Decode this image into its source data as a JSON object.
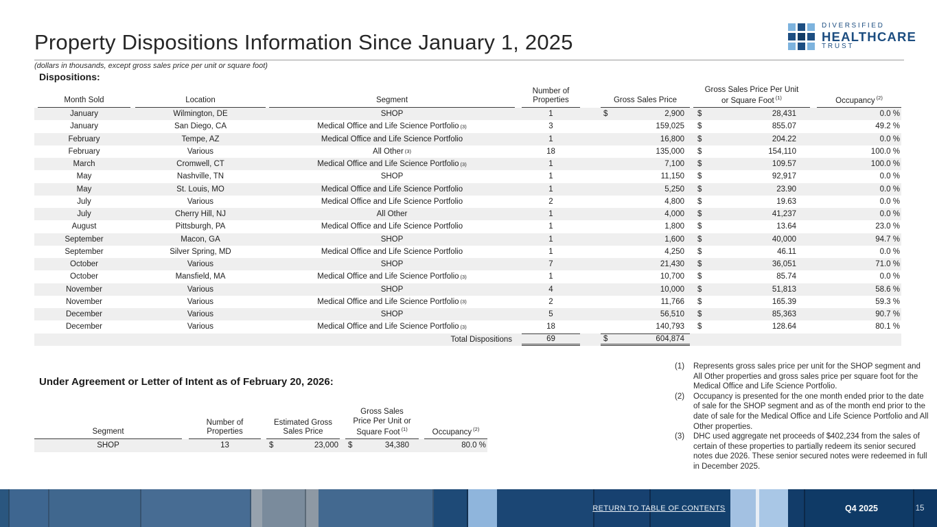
{
  "slide": {
    "title": "Property Dispositions Information Since January 1, 2025",
    "subtitle": "(dollars in thousands, except gross sales price per unit or square foot)"
  },
  "logo": {
    "line1": "DIVERSIFIED",
    "line2": "HEALTHCARE",
    "line3": "TRUST",
    "navy": "#1d4e82",
    "light_blue": "#7db3de"
  },
  "dispositions": {
    "heading": "Dispositions:",
    "headers": {
      "month": "Month Sold",
      "location": "Location",
      "segment": "Segment",
      "properties": "Number of\nProperties",
      "gross_sales_price": "Gross Sales Price",
      "price_per_unit": "Gross Sales Price Per Unit\nor Square Foot",
      "price_per_unit_sup": "(1)",
      "occupancy": "Occupancy",
      "occupancy_sup": "(2)"
    },
    "rows": [
      [
        "January",
        "Wilmington, DE",
        "SHOP",
        "",
        "1",
        "$",
        "2,900",
        "$",
        "28,431",
        "0.0 %"
      ],
      [
        "January",
        "San Diego, CA",
        "Medical Office and Life Science Portfolio",
        "(3)",
        "3",
        "",
        "159,025",
        "$",
        "855.07",
        "49.2 %"
      ],
      [
        "February",
        "Tempe, AZ",
        "Medical Office and Life Science Portfolio",
        "",
        "1",
        "",
        "16,800",
        "$",
        "204.22",
        "0.0 %"
      ],
      [
        "February",
        "Various",
        "All Other",
        "(3)",
        "18",
        "",
        "135,000",
        "$",
        "154,110",
        "100.0 %"
      ],
      [
        "March",
        "Cromwell, CT",
        "Medical Office and Life Science Portfolio",
        "(3)",
        "1",
        "",
        "7,100",
        "$",
        "109.57",
        "100.0 %"
      ],
      [
        "May",
        "Nashville, TN",
        "SHOP",
        "",
        "1",
        "",
        "11,150",
        "$",
        "92,917",
        "0.0 %"
      ],
      [
        "May",
        "St. Louis, MO",
        "Medical Office and Life Science Portfolio",
        "",
        "1",
        "",
        "5,250",
        "$",
        "23.90",
        "0.0 %"
      ],
      [
        "July",
        "Various",
        "Medical Office and Life Science Portfolio",
        "",
        "2",
        "",
        "4,800",
        "$",
        "19.63",
        "0.0 %"
      ],
      [
        "July",
        "Cherry Hill, NJ",
        "All Other",
        "",
        "1",
        "",
        "4,000",
        "$",
        "41,237",
        "0.0 %"
      ],
      [
        "August",
        "Pittsburgh, PA",
        "Medical Office and Life Science Portfolio",
        "",
        "1",
        "",
        "1,800",
        "$",
        "13.64",
        "23.0 %"
      ],
      [
        "September",
        "Macon, GA",
        "SHOP",
        "",
        "1",
        "",
        "1,600",
        "$",
        "40,000",
        "94.7 %"
      ],
      [
        "September",
        "Silver Spring, MD",
        "Medical Office and Life Science Portfolio",
        "",
        "1",
        "",
        "4,250",
        "$",
        "46.11",
        "0.0 %"
      ],
      [
        "October",
        "Various",
        "SHOP",
        "",
        "7",
        "",
        "21,430",
        "$",
        "36,051",
        "71.0 %"
      ],
      [
        "October",
        "Mansfield, MA",
        "Medical Office and Life Science Portfolio",
        "(3)",
        "1",
        "",
        "10,700",
        "$",
        "85.74",
        "0.0 %"
      ],
      [
        "November",
        "Various",
        "SHOP",
        "",
        "4",
        "",
        "10,000",
        "$",
        "51,813",
        "58.6 %"
      ],
      [
        "November",
        "Various",
        "Medical Office and Life Science Portfolio",
        "(3)",
        "2",
        "",
        "11,766",
        "$",
        "165.39",
        "59.3 %"
      ],
      [
        "December",
        "Various",
        "SHOP",
        "",
        "5",
        "",
        "56,510",
        "$",
        "85,363",
        "90.7 %"
      ],
      [
        "December",
        "Various",
        "Medical Office and Life Science Portfolio",
        "(3)",
        "18",
        "",
        "140,793",
        "$",
        "128.64",
        "80.1 %"
      ]
    ],
    "total": {
      "label": "Total Dispositions",
      "properties": "69",
      "dollar": "$",
      "gross_sales_price": "604,874"
    }
  },
  "under_agreement": {
    "heading": "Under Agreement or Letter of Intent as of February 20, 2026:",
    "headers": {
      "segment": "Segment",
      "properties": "Number of\nProperties",
      "est_gross_sales_price": "Estimated Gross\nSales Price",
      "price_per_unit": "Gross Sales\nPrice Per Unit or\nSquare Foot",
      "price_per_unit_sup": "(1)",
      "occupancy": "Occupancy",
      "occupancy_sup": "(2)"
    },
    "row": {
      "segment": "SHOP",
      "properties": "13",
      "dollar1": "$",
      "est_gross_sales_price": "23,000",
      "dollar2": "$",
      "price_per_unit": "34,380",
      "occupancy": "80.0 %"
    }
  },
  "footnotes": [
    {
      "num": "(1)",
      "text": "Represents gross sales price per unit for the SHOP segment and All Other properties and gross sales price per square foot for the Medical Office and Life Science Portfolio."
    },
    {
      "num": "(2)",
      "text": "Occupancy is presented for the one month ended prior to the date of sale for the SHOP segment and as of the month end prior to the date of sale for the Medical Office and Life Science Portfolio and All Other properties."
    },
    {
      "num": "(3)",
      "text": "DHC used aggregate net proceeds of $402,234 from the sales of certain of these properties to partially redeem its senior secured notes due 2026. These senior secured notes were redeemed in full in December 2025."
    }
  ],
  "footer": {
    "return_link": "RETURN TO TABLE OF CONTENTS",
    "quarter": "Q4 2025",
    "page": "15"
  }
}
